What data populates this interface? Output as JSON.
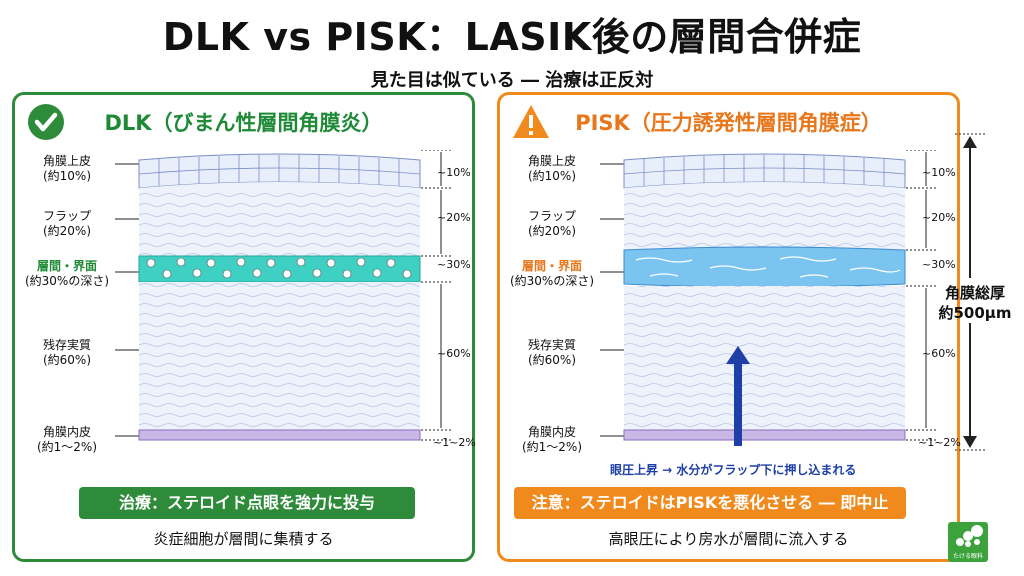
{
  "title": "DLK vs PISK：LASIK後の層間合併症",
  "subtitle": "見た目は似ている ― 治療は正反対",
  "dlk": {
    "heading": "DLK（びまん性層間角膜炎）",
    "labels": {
      "epithelium": "角膜上皮",
      "epithelium_sub": "(約10%)",
      "flap": "フラップ",
      "flap_sub": "(約20%)",
      "interface": "層間・界面",
      "interface_sub": "(約30%の深さ)",
      "stroma": "残存実質",
      "stroma_sub": "(約60%)",
      "endothelium": "角膜内皮",
      "endothelium_sub": "(約1～2%)"
    },
    "pcts": [
      "~10%",
      "~20%",
      "~30%",
      "~60%",
      "~1~2%"
    ],
    "treatment": "治療：ステロイド点眼を強力に投与",
    "note": "炎症細胞が層間に集積する"
  },
  "pisk": {
    "heading": "PISK（圧力誘発性層間角膜症）",
    "labels": {
      "epithelium": "角膜上皮",
      "epithelium_sub": "(約10%)",
      "flap": "フラップ",
      "flap_sub": "(約20%)",
      "interface": "層間・界面",
      "interface_sub": "(約30%の深さ)",
      "stroma": "残存実質",
      "stroma_sub": "(約60%)",
      "endothelium": "角膜内皮",
      "endothelium_sub": "(約1～2%)"
    },
    "pcts": [
      "~10%",
      "~20%",
      "~30%",
      "~60%",
      "~1~2%"
    ],
    "arrow_caption": "眼圧上昇 → 水分がフラップ下に押し込まれる",
    "treatment": "注意：ステロイドはPISKを悪化させる ― 即中止",
    "note": "高眼圧により房水が層間に流入する"
  },
  "total": {
    "line1": "角膜総厚",
    "line2": "約500μm"
  },
  "logo_text": "たける眼科",
  "colors": {
    "dlk": "#2e8b3a",
    "pisk": "#f08a1c",
    "arrow": "#1e3fa8"
  }
}
